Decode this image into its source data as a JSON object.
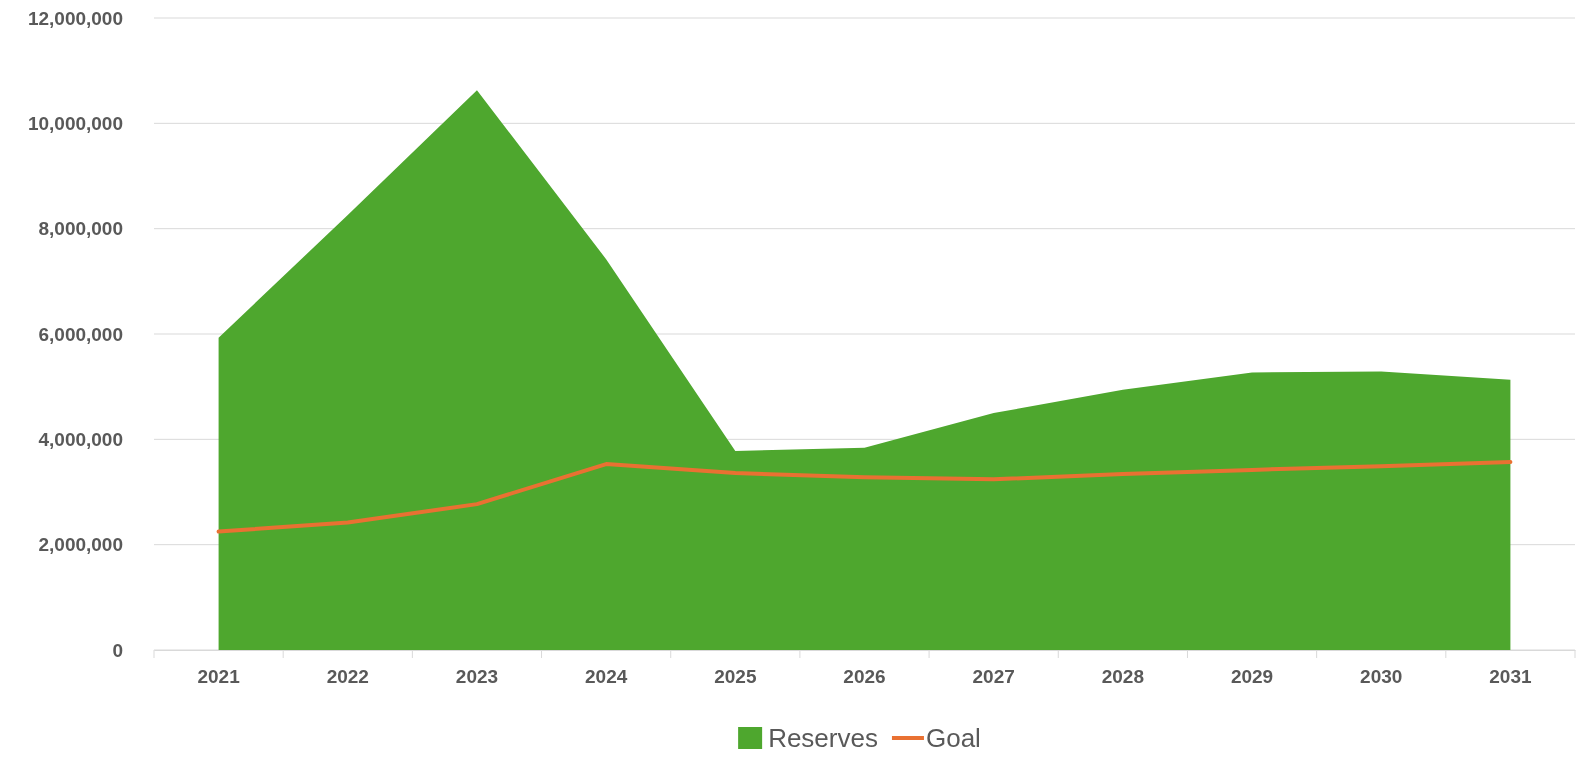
{
  "chart_data": {
    "type": "area",
    "categories": [
      "2021",
      "2022",
      "2023",
      "2024",
      "2025",
      "2026",
      "2027",
      "2028",
      "2029",
      "2030",
      "2031"
    ],
    "series": [
      {
        "name": "Reserves",
        "color": "#4ea72e",
        "values": [
          5930000,
          8260000,
          10630000,
          7420000,
          3780000,
          3840000,
          4500000,
          4940000,
          5270000,
          5290000,
          5130000
        ]
      },
      {
        "name": "Goal",
        "type": "line",
        "color": "#e97132",
        "values": [
          2250000,
          2420000,
          2770000,
          3530000,
          3360000,
          3280000,
          3240000,
          3340000,
          3420000,
          3490000,
          3570000
        ]
      }
    ],
    "ylim": [
      0,
      12000000
    ],
    "yticks": [
      {
        "value": 0,
        "label": "0"
      },
      {
        "value": 2000000,
        "label": "2,000,000"
      },
      {
        "value": 4000000,
        "label": "4,000,000"
      },
      {
        "value": 6000000,
        "label": "6,000,000"
      },
      {
        "value": 8000000,
        "label": "8,000,000"
      },
      {
        "value": 10000000,
        "label": "10,000,000"
      },
      {
        "value": 12000000,
        "label": "12,000,000"
      }
    ],
    "grid": "y",
    "legend": "bottom"
  }
}
